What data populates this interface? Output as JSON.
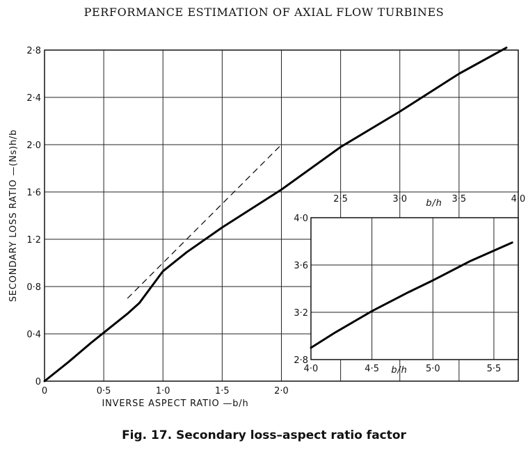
{
  "header": {
    "title": "PERFORMANCE ESTIMATION OF AXIAL FLOW TURBINES"
  },
  "caption": "Fig. 17.  Secondary loss–aspect ratio factor",
  "chart_data": [
    {
      "type": "line",
      "xlabel": "INVERSE ASPECT RATIO —b/h",
      "ylabel": "SECONDARY LOSS RATIO —(Ns)h/b",
      "xlim": [
        0,
        4.0
      ],
      "ylim": [
        0,
        2.8
      ],
      "xticks": [
        0,
        0.5,
        1.0,
        1.5,
        2.0
      ],
      "xtick_labels": [
        "0",
        "0·5",
        "1·0",
        "1·5",
        "2·0"
      ],
      "xticks_top": [
        2.5,
        3.0,
        3.5,
        4.0
      ],
      "xtick_top_labels": [
        "2·5",
        "3·0",
        "3·5",
        "4·0"
      ],
      "xlabel_top": "b/h",
      "yticks": [
        0,
        0.4,
        0.8,
        1.2,
        1.6,
        2.0,
        2.4,
        2.8
      ],
      "ytick_labels": [
        "0",
        "0·4",
        "0·8",
        "1·2",
        "1·6",
        "2·0",
        "2·4",
        "2·8"
      ],
      "grid": true,
      "series": [
        {
          "style": "solid",
          "x": [
            0,
            0.2,
            0.4,
            0.6,
            0.7,
            0.8,
            1.0,
            1.2,
            1.5,
            2.0,
            2.5,
            3.0,
            3.5,
            3.9
          ],
          "y": [
            0,
            0.16,
            0.33,
            0.49,
            0.57,
            0.66,
            0.93,
            1.09,
            1.3,
            1.62,
            1.98,
            2.28,
            2.6,
            2.82
          ]
        },
        {
          "style": "dashed",
          "x": [
            0.7,
            2.0
          ],
          "y": [
            0.7,
            2.0
          ]
        }
      ]
    },
    {
      "type": "line",
      "xlabel": "b/h",
      "ylabel": "",
      "xlim": [
        4.0,
        5.7
      ],
      "ylim": [
        2.8,
        4.0
      ],
      "xticks": [
        4.0,
        4.5,
        5.0,
        5.5
      ],
      "xtick_labels": [
        "4·0",
        "4·5",
        "5·0",
        "5·5"
      ],
      "yticks": [
        2.8,
        3.2,
        3.6,
        4.0
      ],
      "ytick_labels": [
        "2·8",
        "3·2",
        "3·6",
        "4·0"
      ],
      "grid": true,
      "series": [
        {
          "style": "solid",
          "x": [
            4.0,
            4.2,
            4.5,
            4.8,
            5.0,
            5.3,
            5.65
          ],
          "y": [
            2.9,
            3.03,
            3.21,
            3.37,
            3.47,
            3.63,
            3.79
          ]
        }
      ]
    }
  ]
}
